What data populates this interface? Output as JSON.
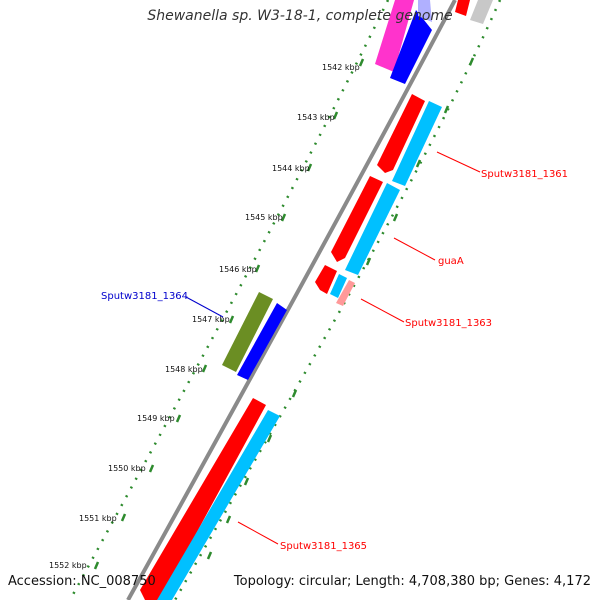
{
  "title": "Shewanella sp. W3-18-1, complete genome",
  "accession": "Accession: NC_008750",
  "topology": "Topology: circular; Length: 4,708,380 bp; Genes: 4,172",
  "colors": {
    "backbone": "#7f7f7f",
    "tick": "#2e8b2e",
    "red_gene": "#ff0000",
    "cyan_gene": "#00c0ff",
    "blue_gene": "#0000ff",
    "olive_gene": "#6b8e23",
    "magenta_gene": "#ff33cc",
    "pink_gene": "#ff9999",
    "gray_gene": "#c8c8c8",
    "label_red": "#ff0000",
    "label_blue": "#0000cc"
  },
  "scale_labels": [
    "1542 kbp",
    "1543 kbp",
    "1544 kbp",
    "1545 kbp",
    "1546 kbp",
    "1547 kbp",
    "1548 kbp",
    "1549 kbp",
    "1550 kbp",
    "1551 kbp",
    "1552 kbp"
  ],
  "gene_labels": [
    {
      "text": "Sputw3181_1361",
      "color": "red"
    },
    {
      "text": "guaA",
      "color": "red"
    },
    {
      "text": "Sputw3181_1363",
      "color": "red"
    },
    {
      "text": "Sputw3181_1364",
      "color": "blue"
    },
    {
      "text": "Sputw3181_1365",
      "color": "red"
    }
  ]
}
